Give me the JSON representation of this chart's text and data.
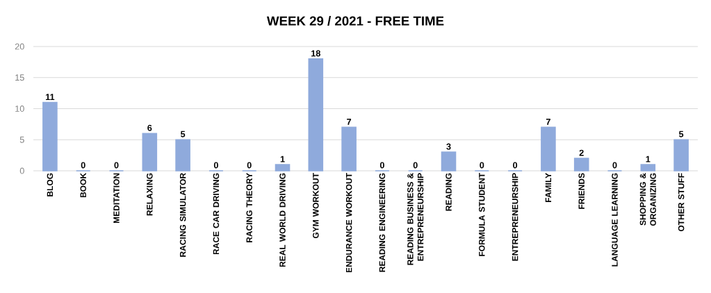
{
  "chart_data": {
    "type": "bar",
    "title": "WEEK 29 / 2021 - FREE TIME",
    "categories": [
      "BLOG",
      "BOOK",
      "MEDITATION",
      "RELAXING",
      "RACING SIMULATOR",
      "RACE CAR DRIVING",
      "RACING THEORY",
      "REAL WORLD DRIVING",
      "GYM WORKOUT",
      "ENDURANCE WORKOUT",
      "READING ENGINEERING",
      "READING BUSINESS & ENTREPRENEURSHIP",
      "READING",
      "FORMULA STUDENT",
      "ENTREPRENEURSHIP",
      "FAMILY",
      "FRIENDS",
      "LANGUAGE LEARNING",
      "SHOPPING & ORGANIZING",
      "OTHER STUFF"
    ],
    "values": [
      11,
      0,
      0,
      6,
      5,
      0,
      0,
      1,
      18,
      7,
      0,
      0,
      3,
      0,
      0,
      7,
      2,
      0,
      1,
      5
    ],
    "color": "#8faadc",
    "ylim": [
      0,
      20
    ],
    "yticks": [
      0,
      5,
      10,
      15,
      20
    ],
    "grid": "y",
    "data_labels": true
  }
}
